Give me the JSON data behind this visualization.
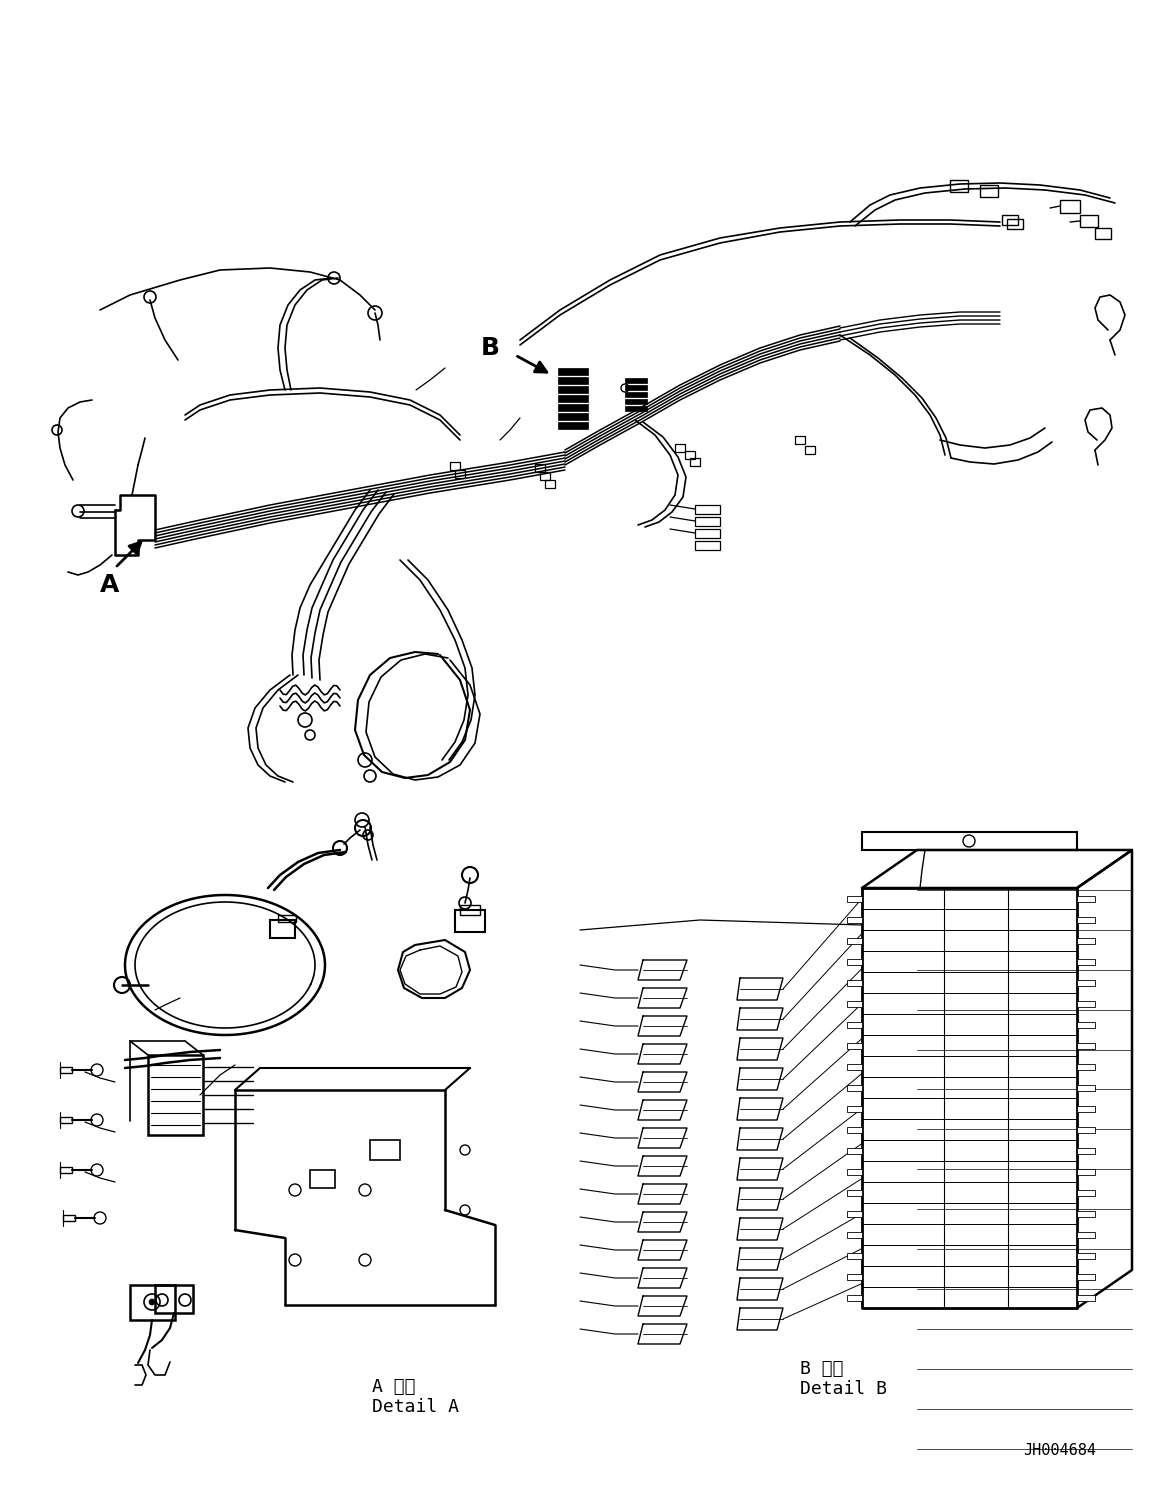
{
  "background_color": "#ffffff",
  "line_color": "#000000",
  "fig_width": 11.63,
  "fig_height": 14.88,
  "dpi": 100,
  "detail_A_jp": "A 詳細",
  "detail_A_en": "Detail A",
  "detail_B_jp": "B 詳細",
  "detail_B_en": "Detail B",
  "part_number": "JH004684"
}
